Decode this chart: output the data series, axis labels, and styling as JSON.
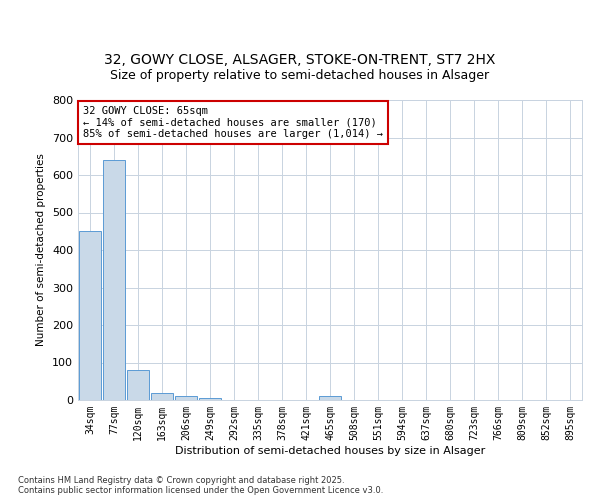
{
  "title1": "32, GOWY CLOSE, ALSAGER, STOKE-ON-TRENT, ST7 2HX",
  "title2": "Size of property relative to semi-detached houses in Alsager",
  "xlabel": "Distribution of semi-detached houses by size in Alsager",
  "ylabel": "Number of semi-detached properties",
  "bar_labels": [
    "34sqm",
    "77sqm",
    "120sqm",
    "163sqm",
    "206sqm",
    "249sqm",
    "292sqm",
    "335sqm",
    "378sqm",
    "421sqm",
    "465sqm",
    "508sqm",
    "551sqm",
    "594sqm",
    "637sqm",
    "680sqm",
    "723sqm",
    "766sqm",
    "809sqm",
    "852sqm",
    "895sqm"
  ],
  "bar_values": [
    450,
    640,
    80,
    20,
    10,
    5,
    0,
    0,
    0,
    0,
    10,
    0,
    0,
    0,
    0,
    0,
    0,
    0,
    0,
    0,
    0
  ],
  "bar_color": "#c9d9e8",
  "bar_edge_color": "#5b9bd5",
  "annotation_text": "32 GOWY CLOSE: 65sqm\n← 14% of semi-detached houses are smaller (170)\n85% of semi-detached houses are larger (1,014) →",
  "annotation_box_color": "#cc0000",
  "ylim": [
    0,
    800
  ],
  "yticks": [
    0,
    100,
    200,
    300,
    400,
    500,
    600,
    700,
    800
  ],
  "background_color": "#ffffff",
  "grid_color": "#c8d3e0",
  "footer_line1": "Contains HM Land Registry data © Crown copyright and database right 2025.",
  "footer_line2": "Contains public sector information licensed under the Open Government Licence v3.0.",
  "title1_fontsize": 10,
  "title2_fontsize": 9,
  "ann_fontsize": 7.5,
  "xlabel_fontsize": 8,
  "ylabel_fontsize": 7.5,
  "ytick_fontsize": 8,
  "xtick_fontsize": 7
}
